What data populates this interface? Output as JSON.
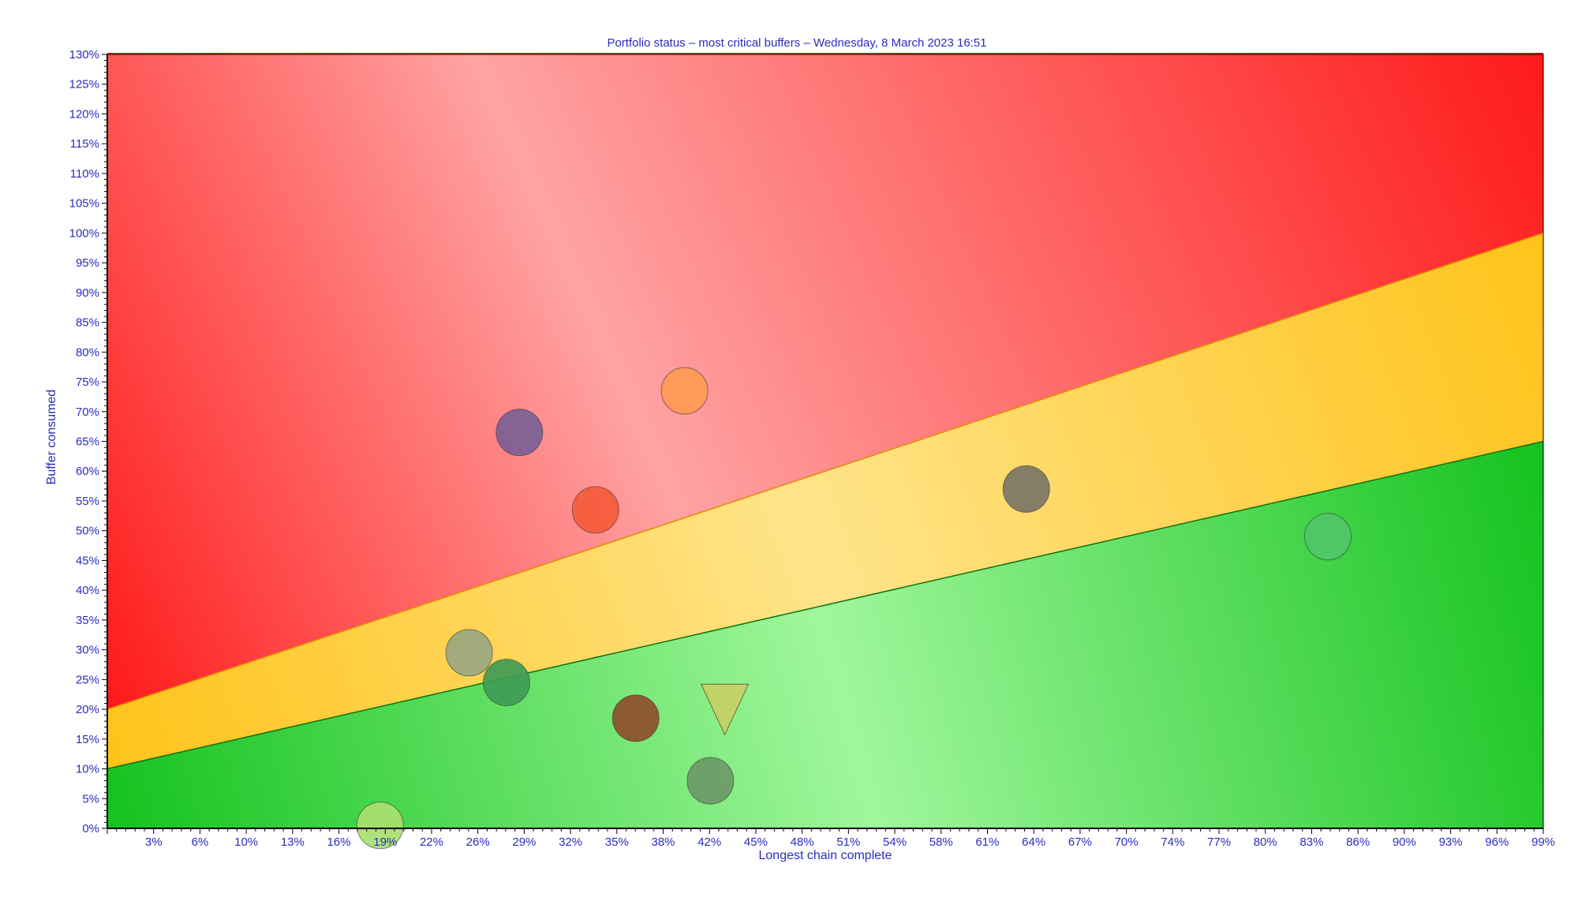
{
  "chart_data": {
    "type": "scatter",
    "title": "Portfolio status  –  most critical buffers  –  Wednesday, 8 March 2023 16:51",
    "xlabel": "Longest chain complete",
    "ylabel": "Buffer consumed",
    "xlim": [
      0,
      100
    ],
    "ylim": [
      0,
      130
    ],
    "x_tick_labels": [
      "3%",
      "6%",
      "10%",
      "13%",
      "16%",
      "19%",
      "22%",
      "26%",
      "29%",
      "32%",
      "35%",
      "38%",
      "42%",
      "45%",
      "48%",
      "51%",
      "54%",
      "58%",
      "61%",
      "64%",
      "67%",
      "70%",
      "74%",
      "77%",
      "80%",
      "83%",
      "86%",
      "90%",
      "93%",
      "96%",
      "99%"
    ],
    "y_tick_labels": [
      "0%",
      "5%",
      "10%",
      "15%",
      "20%",
      "25%",
      "30%",
      "35%",
      "40%",
      "45%",
      "50%",
      "55%",
      "60%",
      "65%",
      "70%",
      "75%",
      "80%",
      "85%",
      "90%",
      "95%",
      "100%",
      "105%",
      "110%",
      "115%",
      "120%",
      "125%",
      "130%"
    ],
    "zones": {
      "green_line": {
        "from": [
          0,
          10
        ],
        "to": [
          100,
          65
        ]
      },
      "yellow_line": {
        "from": [
          0,
          20
        ],
        "to": [
          100,
          100
        ]
      },
      "colors": {
        "red": "#ff1a1a",
        "red_light": "#ffa3a3",
        "yellow": "#ffc31a",
        "yellow_light": "#ffe48a",
        "green": "#14c21e",
        "green_light": "#a0f79c"
      }
    },
    "points": [
      {
        "x": 28.7,
        "y": 66.5,
        "shape": "circle",
        "color": "#7a5f96"
      },
      {
        "x": 40.2,
        "y": 73.5,
        "shape": "circle",
        "color": "#ff9a55"
      },
      {
        "x": 34.0,
        "y": 53.5,
        "shape": "circle",
        "color": "#f55a3a"
      },
      {
        "x": 64.0,
        "y": 57.0,
        "shape": "circle",
        "color": "#7c7567"
      },
      {
        "x": 85.0,
        "y": 49.0,
        "shape": "circle",
        "color": "#4fc76a"
      },
      {
        "x": 25.2,
        "y": 29.5,
        "shape": "circle",
        "color": "#99a780"
      },
      {
        "x": 27.8,
        "y": 24.5,
        "shape": "circle",
        "color": "#3f9b55"
      },
      {
        "x": 36.8,
        "y": 18.5,
        "shape": "circle",
        "color": "#8e4e2a"
      },
      {
        "x": 43.0,
        "y": 20.5,
        "shape": "triangle-down",
        "color": "#c6cf63"
      },
      {
        "x": 42.0,
        "y": 8.0,
        "shape": "circle",
        "color": "#6d9a68"
      },
      {
        "x": 19.0,
        "y": 0.5,
        "shape": "circle",
        "color": "#a8df6e"
      }
    ]
  }
}
